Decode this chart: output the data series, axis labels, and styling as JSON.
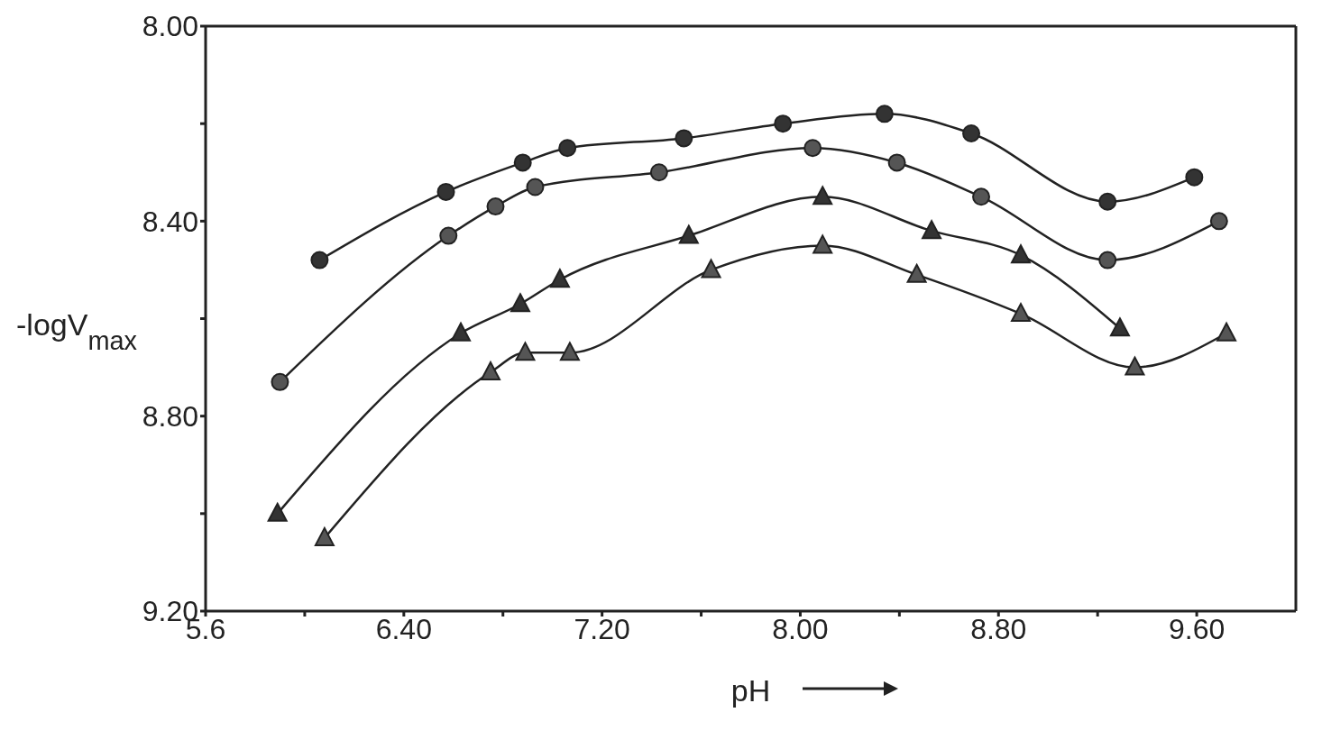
{
  "chart_data": {
    "type": "line",
    "xlabel": "pH",
    "ylabel": "-logV$_{max}$",
    "xlim": [
      5.6,
      10.0
    ],
    "ylim": [
      9.2,
      8.0
    ],
    "xticks": [
      5.6,
      {
        "value": 6.0,
        "label": null
      },
      {
        "value": 6.4,
        "label": "6.40"
      },
      {
        "value": 6.8,
        "label": null
      },
      {
        "value": 7.2,
        "label": "7.20"
      },
      {
        "value": 7.6,
        "label": null
      },
      {
        "value": 8.0,
        "label": "8.00"
      },
      {
        "value": 8.4,
        "label": null
      },
      {
        "value": 8.8,
        "label": "8.80"
      },
      {
        "value": 9.2,
        "label": null
      },
      {
        "value": 9.6,
        "label": "9.60"
      }
    ],
    "yticks": [
      {
        "value": 8.0,
        "label": "8.00"
      },
      {
        "value": 8.2,
        "label": null
      },
      {
        "value": 8.4,
        "label": "8.40"
      },
      {
        "value": 8.6,
        "label": null
      },
      {
        "value": 8.8,
        "label": "8.80"
      },
      {
        "value": 9.0,
        "label": null
      },
      {
        "value": 9.2,
        "label": "9.20"
      }
    ],
    "line_style": "solid",
    "series": [
      {
        "color": "#333333",
        "marker": "circle",
        "x": [
          6.06,
          6.57,
          6.88,
          7.06,
          7.53,
          7.93,
          8.34,
          8.69,
          9.24,
          9.59
        ],
        "values": [
          8.48,
          8.34,
          8.28,
          8.25,
          8.23,
          8.2,
          8.18,
          8.22,
          8.36,
          8.31
        ]
      },
      {
        "color": "#555555",
        "marker": "circle",
        "x": [
          5.9,
          6.58,
          6.77,
          6.93,
          7.43,
          8.05,
          8.39,
          8.73,
          9.24,
          9.69
        ],
        "values": [
          8.73,
          8.43,
          8.37,
          8.33,
          8.3,
          8.25,
          8.28,
          8.35,
          8.48,
          8.4
        ]
      },
      {
        "color": "#333333",
        "marker": "triangle",
        "x": [
          5.89,
          6.63,
          6.87,
          7.03,
          7.55,
          8.09,
          8.53,
          8.89,
          9.29
        ],
        "values": [
          9.0,
          8.63,
          8.57,
          8.52,
          8.43,
          8.35,
          8.42,
          8.47,
          8.62
        ]
      },
      {
        "color": "#555555",
        "marker": "triangle",
        "x": [
          6.08,
          6.75,
          6.89,
          7.07,
          7.64,
          8.09,
          8.47,
          8.89,
          9.35,
          9.72
        ],
        "values": [
          9.05,
          8.71,
          8.67,
          8.67,
          8.5,
          8.45,
          8.51,
          8.59,
          8.7,
          8.63
        ]
      }
    ]
  }
}
